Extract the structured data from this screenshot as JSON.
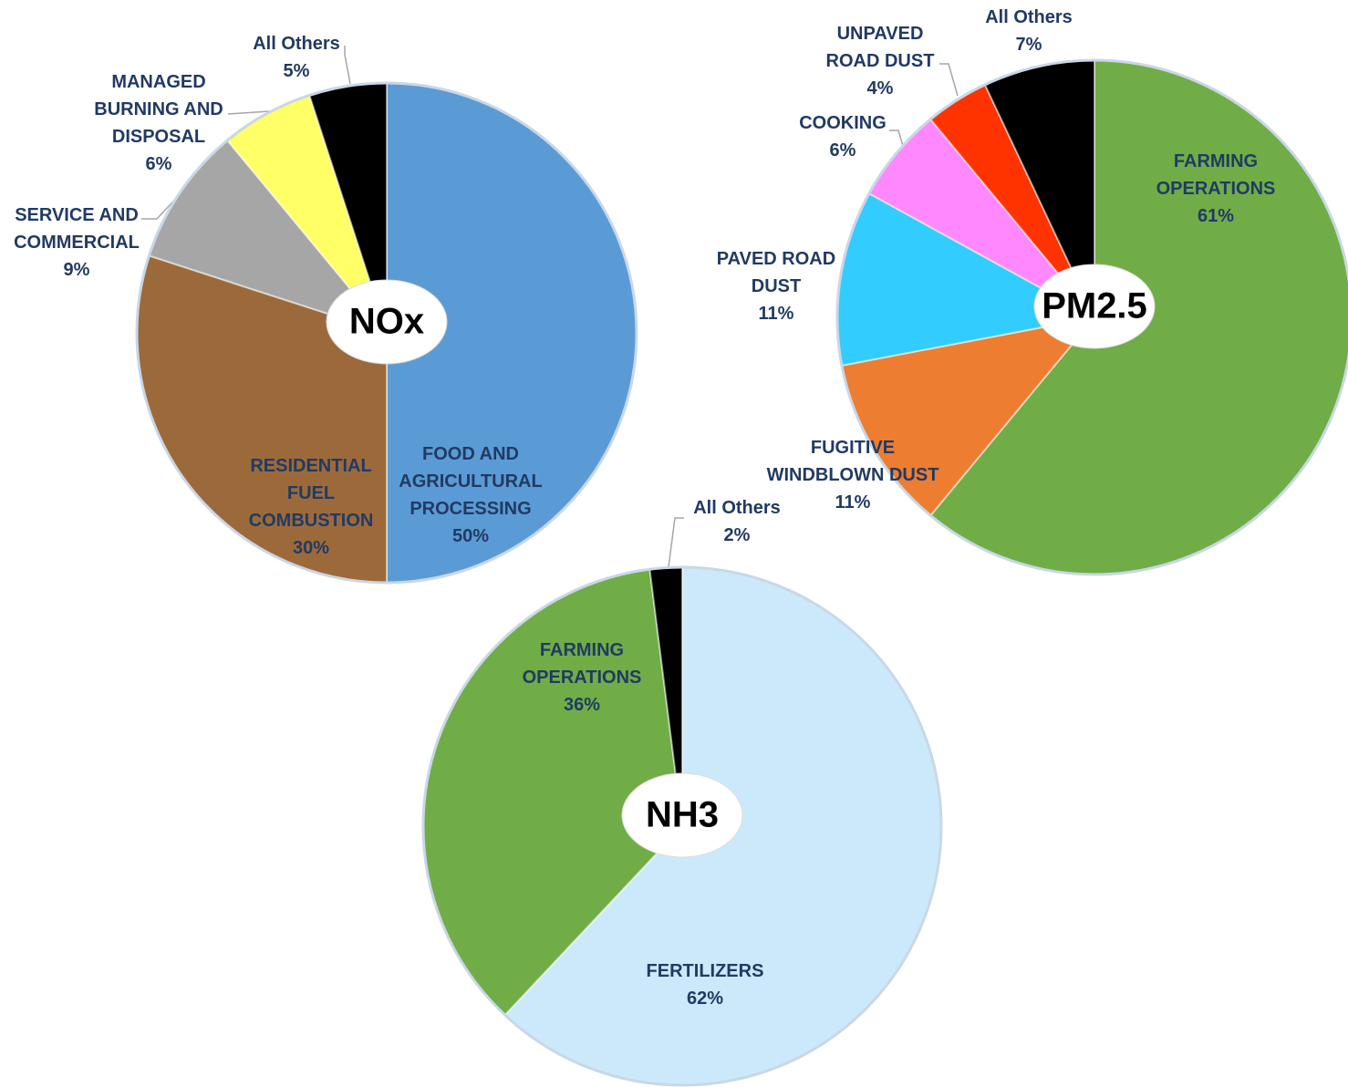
{
  "chart_data": [
    {
      "type": "pie",
      "title": "NOx",
      "categories": [
        "FOOD AND AGRICULTURAL PROCESSING",
        "RESIDENTIAL FUEL COMBUSTION",
        "SERVICE AND COMMERCIAL",
        "MANAGED BURNING AND DISPOSAL",
        "All Others"
      ],
      "values": [
        50,
        30,
        9,
        6,
        5
      ],
      "value_labels": [
        "50%",
        "30%",
        "9%",
        "6%",
        "5%"
      ],
      "colors": [
        "#5b9bd5",
        "#9c6a3a",
        "#a6a6a6",
        "#ffff66",
        "#000000"
      ]
    },
    {
      "type": "pie",
      "title": "PM2.5",
      "categories": [
        "FARMING OPERATIONS",
        "FUGITIVE WINDBLOWN DUST",
        "PAVED ROAD DUST",
        "COOKING",
        "UNPAVED ROAD DUST",
        "All Others"
      ],
      "values": [
        61,
        11,
        11,
        6,
        4,
        7
      ],
      "value_labels": [
        "61%",
        "11%",
        "11%",
        "6%",
        "4%",
        "7%"
      ],
      "colors": [
        "#70ad47",
        "#ed7d31",
        "#33ccff",
        "#ff88ff",
        "#ff3300",
        "#000000"
      ]
    },
    {
      "type": "pie",
      "title": "NH3",
      "categories": [
        "FERTILIZERS",
        "FARMING OPERATIONS",
        "All Others"
      ],
      "values": [
        62,
        36,
        2
      ],
      "value_labels": [
        "62%",
        "36%",
        "2%"
      ],
      "colors": [
        "#cce9fb",
        "#70ad47",
        "#000000"
      ]
    }
  ]
}
